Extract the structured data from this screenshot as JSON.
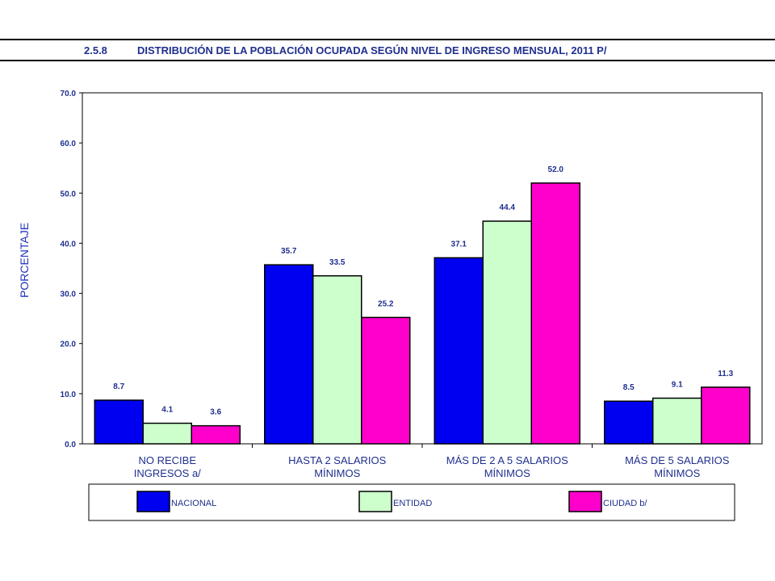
{
  "header": {
    "number": "2.5.8",
    "title": "DISTRIBUCIÓN DE LA POBLACIÓN OCUPADA SEGÚN NIVEL DE INGRESO MENSUAL, 2011 P/"
  },
  "chart_data": {
    "type": "bar",
    "title": "DISTRIBUCIÓN DE LA POBLACIÓN OCUPADA SEGÚN NIVEL DE INGRESO MENSUAL, 2011 P/",
    "ylabel": "PORCENTAJE",
    "xlabel": "",
    "ylim": [
      0,
      70
    ],
    "yticks": [
      "0.0",
      "10.0",
      "20.0",
      "30.0",
      "40.0",
      "50.0",
      "60.0",
      "70.0"
    ],
    "categories": [
      [
        "NO RECIBE",
        "INGRESOS a/"
      ],
      [
        "HASTA 2 SALARIOS",
        "MÍNIMOS"
      ],
      [
        "MÁS DE 2 A 5 SALARIOS",
        "MÍNIMOS"
      ],
      [
        "MÁS DE 5 SALARIOS",
        "MÍNIMOS"
      ]
    ],
    "series": [
      {
        "name": "NACIONAL",
        "color": "#0000f0",
        "values": [
          8.7,
          35.7,
          37.1,
          8.5
        ],
        "labels": [
          "8.7",
          "35.7",
          "37.1",
          "8.5"
        ]
      },
      {
        "name": "ENTIDAD",
        "color": "#ccffcc",
        "values": [
          4.1,
          33.5,
          44.4,
          9.1
        ],
        "labels": [
          "4.1",
          "33.5",
          "44.4",
          "9.1"
        ]
      },
      {
        "name": "CIUDAD b/",
        "color": "#ff00cc",
        "values": [
          3.6,
          25.2,
          52.0,
          11.3
        ],
        "labels": [
          "3.6",
          "25.2",
          "52.0",
          "11.3"
        ]
      }
    ],
    "grid": false,
    "legend_position": "bottom",
    "text_color": "#1f2f8f"
  }
}
